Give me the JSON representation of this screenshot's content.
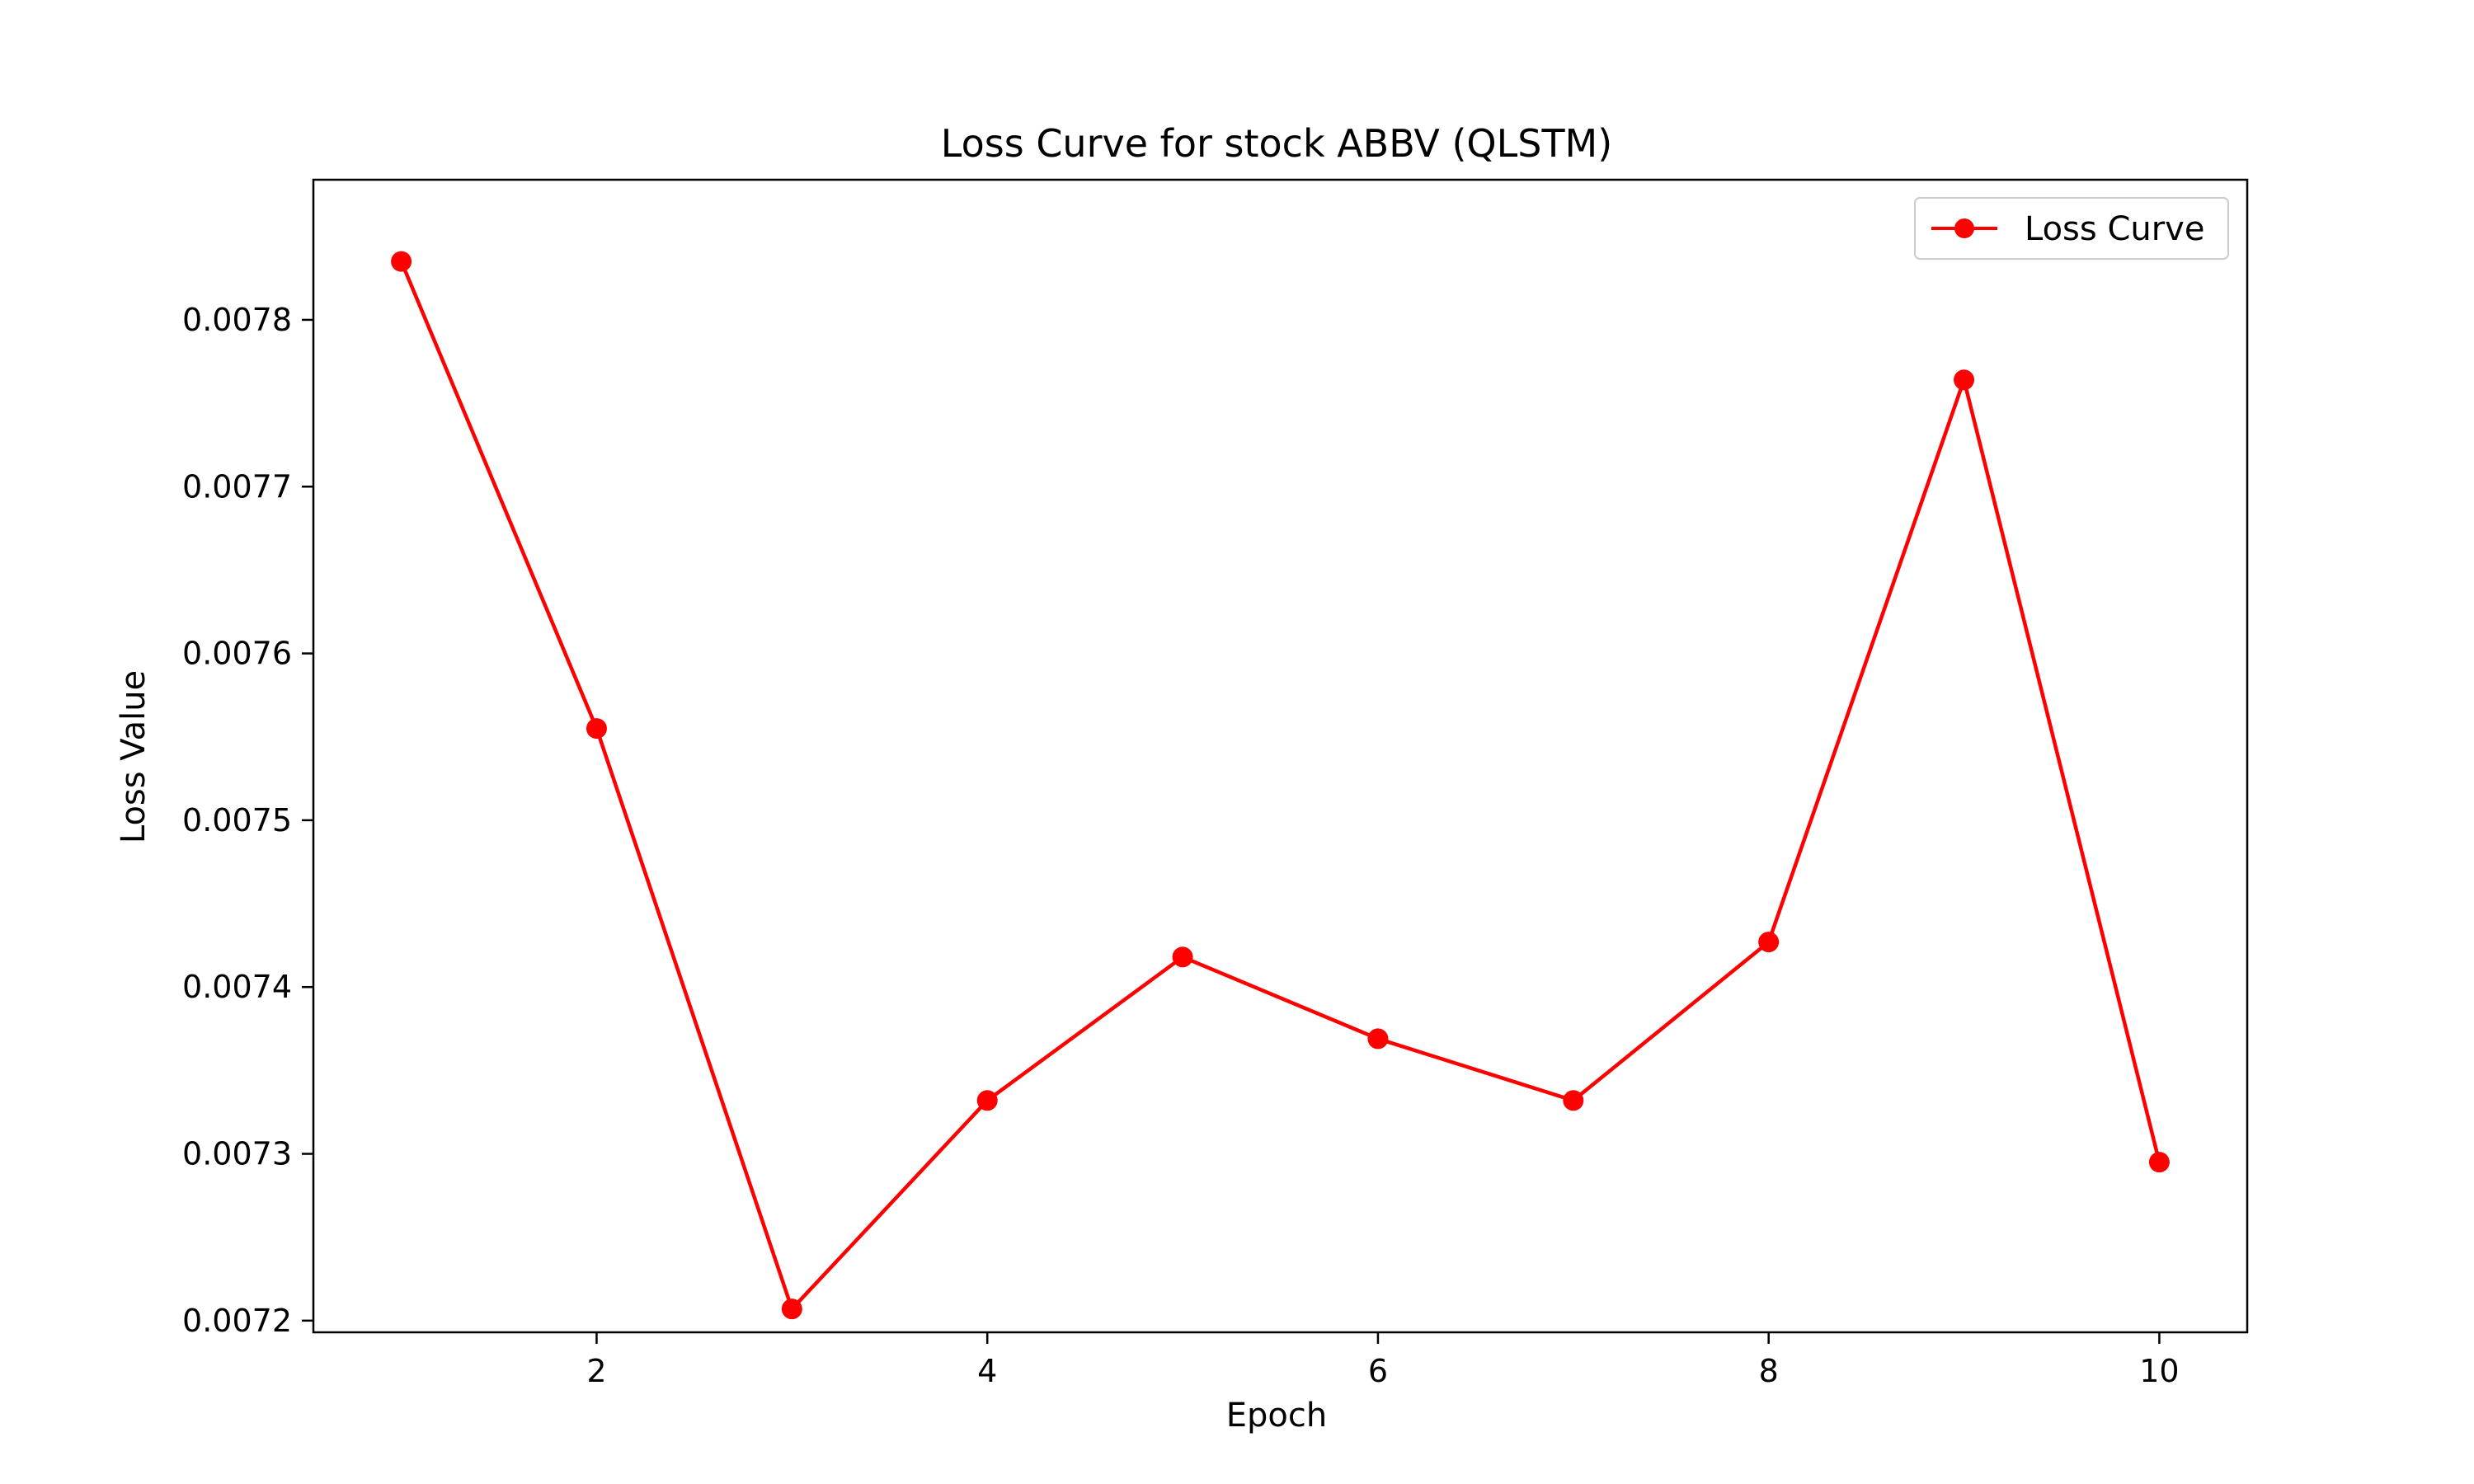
{
  "chart_data": {
    "type": "line",
    "title": "Loss Curve for stock ABBV (QLSTM)",
    "xlabel": "Epoch",
    "ylabel": "Loss Value",
    "xlim": [
      0.55,
      10.45
    ],
    "ylim": [
      0.007193,
      0.007884
    ],
    "xticks": [
      2,
      4,
      6,
      8,
      10
    ],
    "xtick_labels": [
      "2",
      "4",
      "6",
      "8",
      "10"
    ],
    "yticks": [
      0.0072,
      0.0073,
      0.0074,
      0.0075,
      0.0076,
      0.0077,
      0.0078
    ],
    "ytick_labels": [
      "0.0072",
      "0.0073",
      "0.0074",
      "0.0075",
      "0.0076",
      "0.0077",
      "0.0078"
    ],
    "grid": false,
    "legend_position": "top-right",
    "series": [
      {
        "name": "Loss Curve",
        "color": "#ff0000",
        "marker": "circle",
        "x": [
          1,
          2,
          3,
          4,
          5,
          6,
          7,
          8,
          9,
          10
        ],
        "y": [
          0.007835,
          0.007555,
          0.007207,
          0.007332,
          0.007418,
          0.007369,
          0.007332,
          0.007427,
          0.007764,
          0.007295
        ]
      }
    ]
  }
}
